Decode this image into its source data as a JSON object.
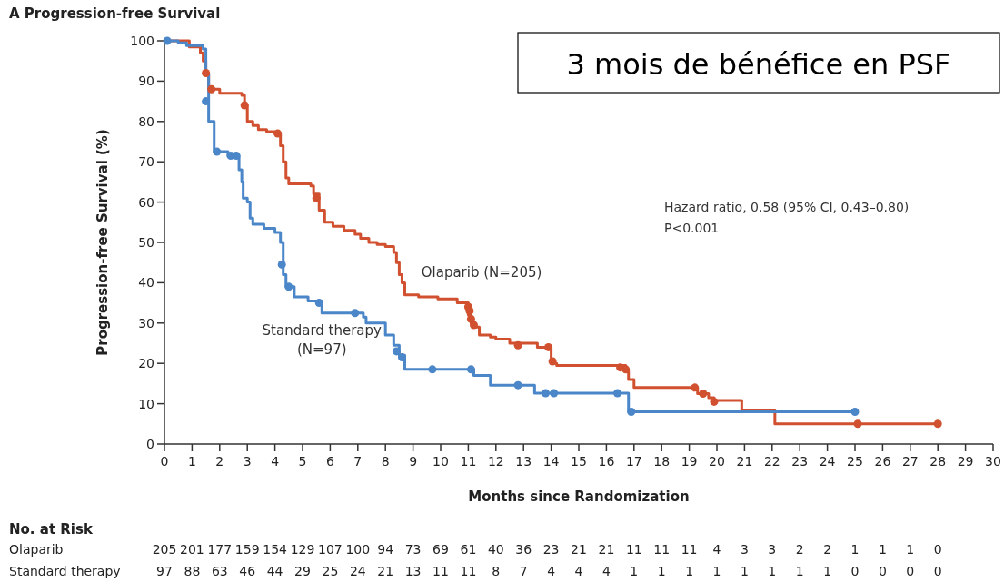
{
  "chart_data": {
    "type": "step",
    "title": "A  Progression-free Survival",
    "xlabel": "Months since Randomization",
    "ylabel": "Progression-free Survival (%)",
    "xlim": [
      0,
      30
    ],
    "xticks": [
      0,
      1,
      2,
      3,
      4,
      5,
      6,
      7,
      8,
      9,
      10,
      11,
      12,
      13,
      14,
      15,
      16,
      17,
      18,
      19,
      20,
      21,
      22,
      23,
      24,
      25,
      26,
      27,
      28,
      29,
      30
    ],
    "ylim": [
      0,
      100
    ],
    "yticks": [
      0,
      10,
      20,
      30,
      40,
      50,
      60,
      70,
      80,
      90,
      100
    ],
    "grid": false,
    "legend": false,
    "line_style": "solid",
    "series": [
      {
        "name": "Olaparib (N=205)",
        "color": "#d1502f",
        "x": [
          0,
          0.9,
          1.3,
          1.4,
          1.5,
          1.6,
          2.0,
          2.8,
          2.9,
          3.0,
          3.2,
          3.4,
          3.7,
          4.0,
          4.2,
          4.3,
          4.4,
          4.5,
          5.3,
          5.4,
          5.6,
          5.8,
          6.1,
          6.5,
          6.9,
          7.1,
          7.4,
          7.7,
          8.0,
          8.3,
          8.4,
          8.5,
          8.6,
          8.7,
          9.2,
          9.9,
          10.6,
          11.0,
          11.1,
          11.2,
          11.4,
          11.8,
          12.0,
          12.5,
          13.5,
          14.0,
          14.1,
          14.2,
          16.7,
          16.8,
          17.0,
          19.3,
          19.7,
          19.9,
          20.9,
          22.1,
          28
        ],
        "values": [
          100,
          98.5,
          97,
          95,
          92,
          88,
          87,
          86.5,
          84,
          80,
          79,
          78,
          77.5,
          77,
          74,
          70,
          66,
          64.5,
          64,
          62,
          58,
          55,
          54,
          53,
          52,
          51,
          50,
          49.5,
          49,
          47.5,
          45,
          42,
          40,
          37,
          36.5,
          36,
          35,
          32,
          30,
          29,
          27,
          26.5,
          26,
          25,
          24,
          21,
          20,
          19.5,
          18,
          16,
          14,
          12.5,
          11.5,
          10.8,
          8.3,
          5,
          5
        ]
      },
      {
        "name": "Standard therapy (N=97)",
        "color": "#4a86c8",
        "x": [
          0,
          0.5,
          0.8,
          1.4,
          1.5,
          1.6,
          1.8,
          2.3,
          2.7,
          2.8,
          2.85,
          3.0,
          3.1,
          3.2,
          3.6,
          4.0,
          4.2,
          4.3,
          4.4,
          4.7,
          5.2,
          5.7,
          7.2,
          7.3,
          8.0,
          8.3,
          8.5,
          8.7,
          11.2,
          11.8,
          13.4,
          16.8,
          25.0
        ],
        "values": [
          100,
          99.5,
          98.8,
          98,
          92,
          80,
          72.5,
          71.5,
          68,
          65,
          61,
          60,
          56,
          54.5,
          53.5,
          52.5,
          50,
          42,
          39,
          36.5,
          35.5,
          32.5,
          31.5,
          30,
          27,
          24.5,
          22,
          18.5,
          17,
          14.6,
          12.6,
          8,
          8
        ]
      },
      {
        "type": "scatter",
        "color": "#d1502f",
        "marker": "circle",
        "x": [
          1.5,
          1.7,
          2.9,
          4.1,
          5.5,
          11.0,
          11.05,
          11.1,
          11.2,
          12.8,
          13.9,
          14.05,
          16.5,
          16.7,
          19.2,
          19.5,
          19.9,
          25.1,
          28
        ],
        "values": [
          92,
          88,
          84,
          77,
          61,
          34,
          33,
          31,
          29.5,
          24.5,
          24,
          20.5,
          19,
          18.5,
          14,
          12.5,
          10.5,
          5,
          5
        ]
      },
      {
        "type": "scatter",
        "color": "#4a86c8",
        "marker": "circle",
        "x": [
          0.1,
          1.5,
          1.9,
          2.4,
          2.6,
          4.25,
          4.5,
          5.6,
          6.9,
          8.4,
          8.6,
          9.7,
          11.1,
          12.8,
          13.8,
          14.1,
          16.4,
          16.9,
          25.0
        ],
        "values": [
          100,
          85,
          72.5,
          71.5,
          71.5,
          44.5,
          39,
          35,
          32.5,
          23,
          21.5,
          18.5,
          18.5,
          14.6,
          12.6,
          12.6,
          12.6,
          8,
          8
        ]
      }
    ],
    "annotations": [
      "3 mois de bénéfice en PSF",
      "Hazard ratio, 0.58 (95% CI, 0.43–0.80)",
      "P<0.001",
      "No. at Risk",
      "Olaparib",
      "205 201 177 159 154 129 107 100 94 73 69 61 40 36 23 21 21 11 11 11 4 3 3 2 2 1 1 1 0",
      "Standard therapy",
      "97 88 63 46 44 29 25 24 21 13 11 11 8 7 4 4 4 1 1 1 1 1 1 1 1 0 0 0 0"
    ]
  }
}
